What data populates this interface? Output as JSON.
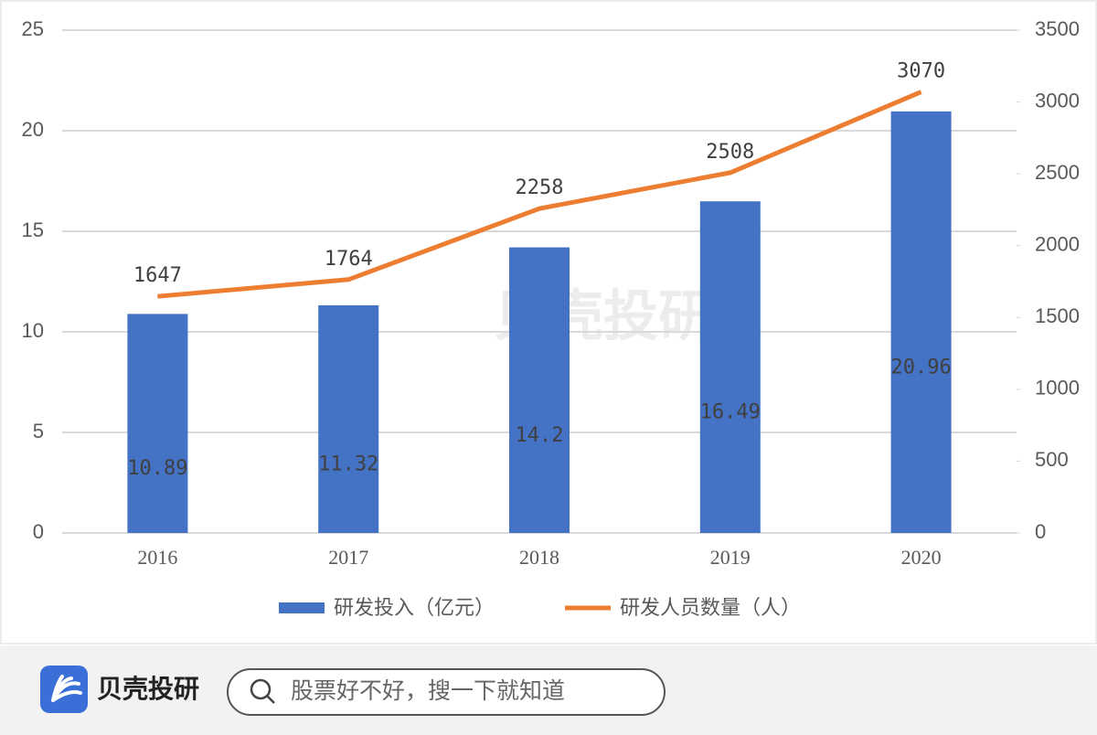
{
  "chart_data": {
    "type": "bar",
    "categories": [
      "2016",
      "2017",
      "2018",
      "2019",
      "2020"
    ],
    "series": [
      {
        "name": "研发投入（亿元）",
        "color": "#4472c4",
        "values": [
          10.89,
          11.32,
          14.2,
          16.49,
          20.96
        ]
      },
      {
        "name": "研发人员数量（人）",
        "color": "#ed7d31",
        "type": "line",
        "axis": "y2",
        "values": [
          1647,
          1764,
          2258,
          2508,
          3070
        ]
      }
    ],
    "ylim": [
      0,
      25
    ],
    "yticks": [
      0,
      5,
      10,
      15,
      20,
      25
    ],
    "y2lim": [
      0,
      3500
    ],
    "y2ticks": [
      0,
      500,
      1000,
      1500,
      2000,
      2500,
      3000,
      3500
    ],
    "grid": true,
    "legend": "bottom"
  },
  "watermark": {
    "title": "贝壳投研"
  },
  "footer": {
    "brand": "贝壳投研",
    "search_placeholder": "股票好不好，搜一下就知道"
  }
}
